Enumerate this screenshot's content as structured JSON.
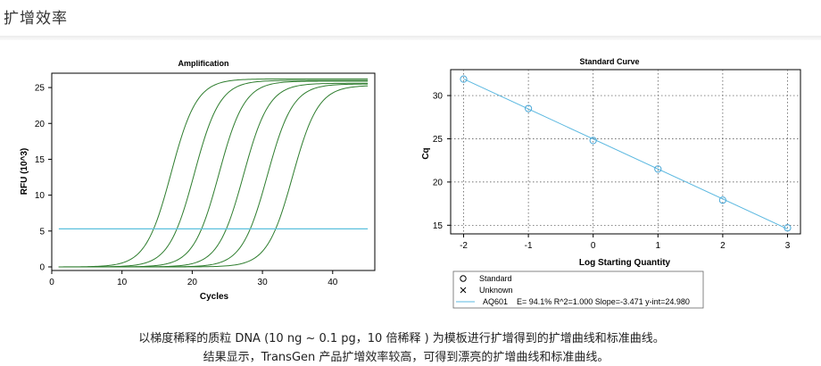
{
  "page": {
    "title": "扩增效率",
    "caption_line1": "以梯度稀释的质粒 DNA (10 ng ~ 0.1 pg，10 倍稀释 ) 为模板进行扩增得到的扩增曲线和标准曲线。",
    "caption_line2": "结果显示，TransGen 产品扩增效率较高，可得到漂亮的扩增曲线和标准曲线。"
  },
  "colors": {
    "curve": "#2e7d2e",
    "threshold": "#5bc0de",
    "fit_line": "#5bb8e0",
    "marker": "#4aa8d8"
  },
  "chart_data": [
    {
      "type": "line",
      "title": "Amplification",
      "xlabel": "Cycles",
      "ylabel": "RFU (10^3)",
      "xlim": [
        0,
        46
      ],
      "ylim": [
        -0.5,
        27
      ],
      "xticks": [
        0,
        10,
        20,
        30,
        40
      ],
      "yticks": [
        0,
        5,
        10,
        15,
        20,
        25
      ],
      "x_range": [
        1,
        45
      ],
      "threshold": 5.3,
      "series": [
        {
          "midpoint": 17.0,
          "plateau": 26.2,
          "slope": 0.55
        },
        {
          "midpoint": 20.3,
          "plateau": 26.0,
          "slope": 0.55
        },
        {
          "midpoint": 23.8,
          "plateau": 25.9,
          "slope": 0.55
        },
        {
          "midpoint": 27.3,
          "plateau": 25.6,
          "slope": 0.55
        },
        {
          "midpoint": 30.7,
          "plateau": 25.5,
          "slope": 0.55
        },
        {
          "midpoint": 34.3,
          "plateau": 25.3,
          "slope": 0.55
        }
      ],
      "grid": false
    },
    {
      "type": "scatter",
      "title": "Standard Curve",
      "xlabel": "Log Starting Quantity",
      "ylabel": "Cq",
      "xlim": [
        -2.2,
        3.2
      ],
      "ylim": [
        14,
        33
      ],
      "xticks": [
        -2,
        -1,
        0,
        1,
        2,
        3
      ],
      "yticks": [
        15,
        20,
        25,
        30
      ],
      "grid": true,
      "points": [
        {
          "x": -2,
          "y": 31.9
        },
        {
          "x": -1,
          "y": 28.5
        },
        {
          "x": 0,
          "y": 24.8
        },
        {
          "x": 1,
          "y": 21.5
        },
        {
          "x": 2,
          "y": 17.9
        },
        {
          "x": 3,
          "y": 14.7
        }
      ],
      "fit": {
        "slope": -3.471,
        "intercept": 24.98
      },
      "legend": {
        "position": "bottom",
        "standard": "Standard",
        "unknown": "Unknown",
        "series_name": "AQ601",
        "stats": "E= 94.1% R^2=1.000 Slope=-3.471 y-int=24.980"
      }
    }
  ]
}
